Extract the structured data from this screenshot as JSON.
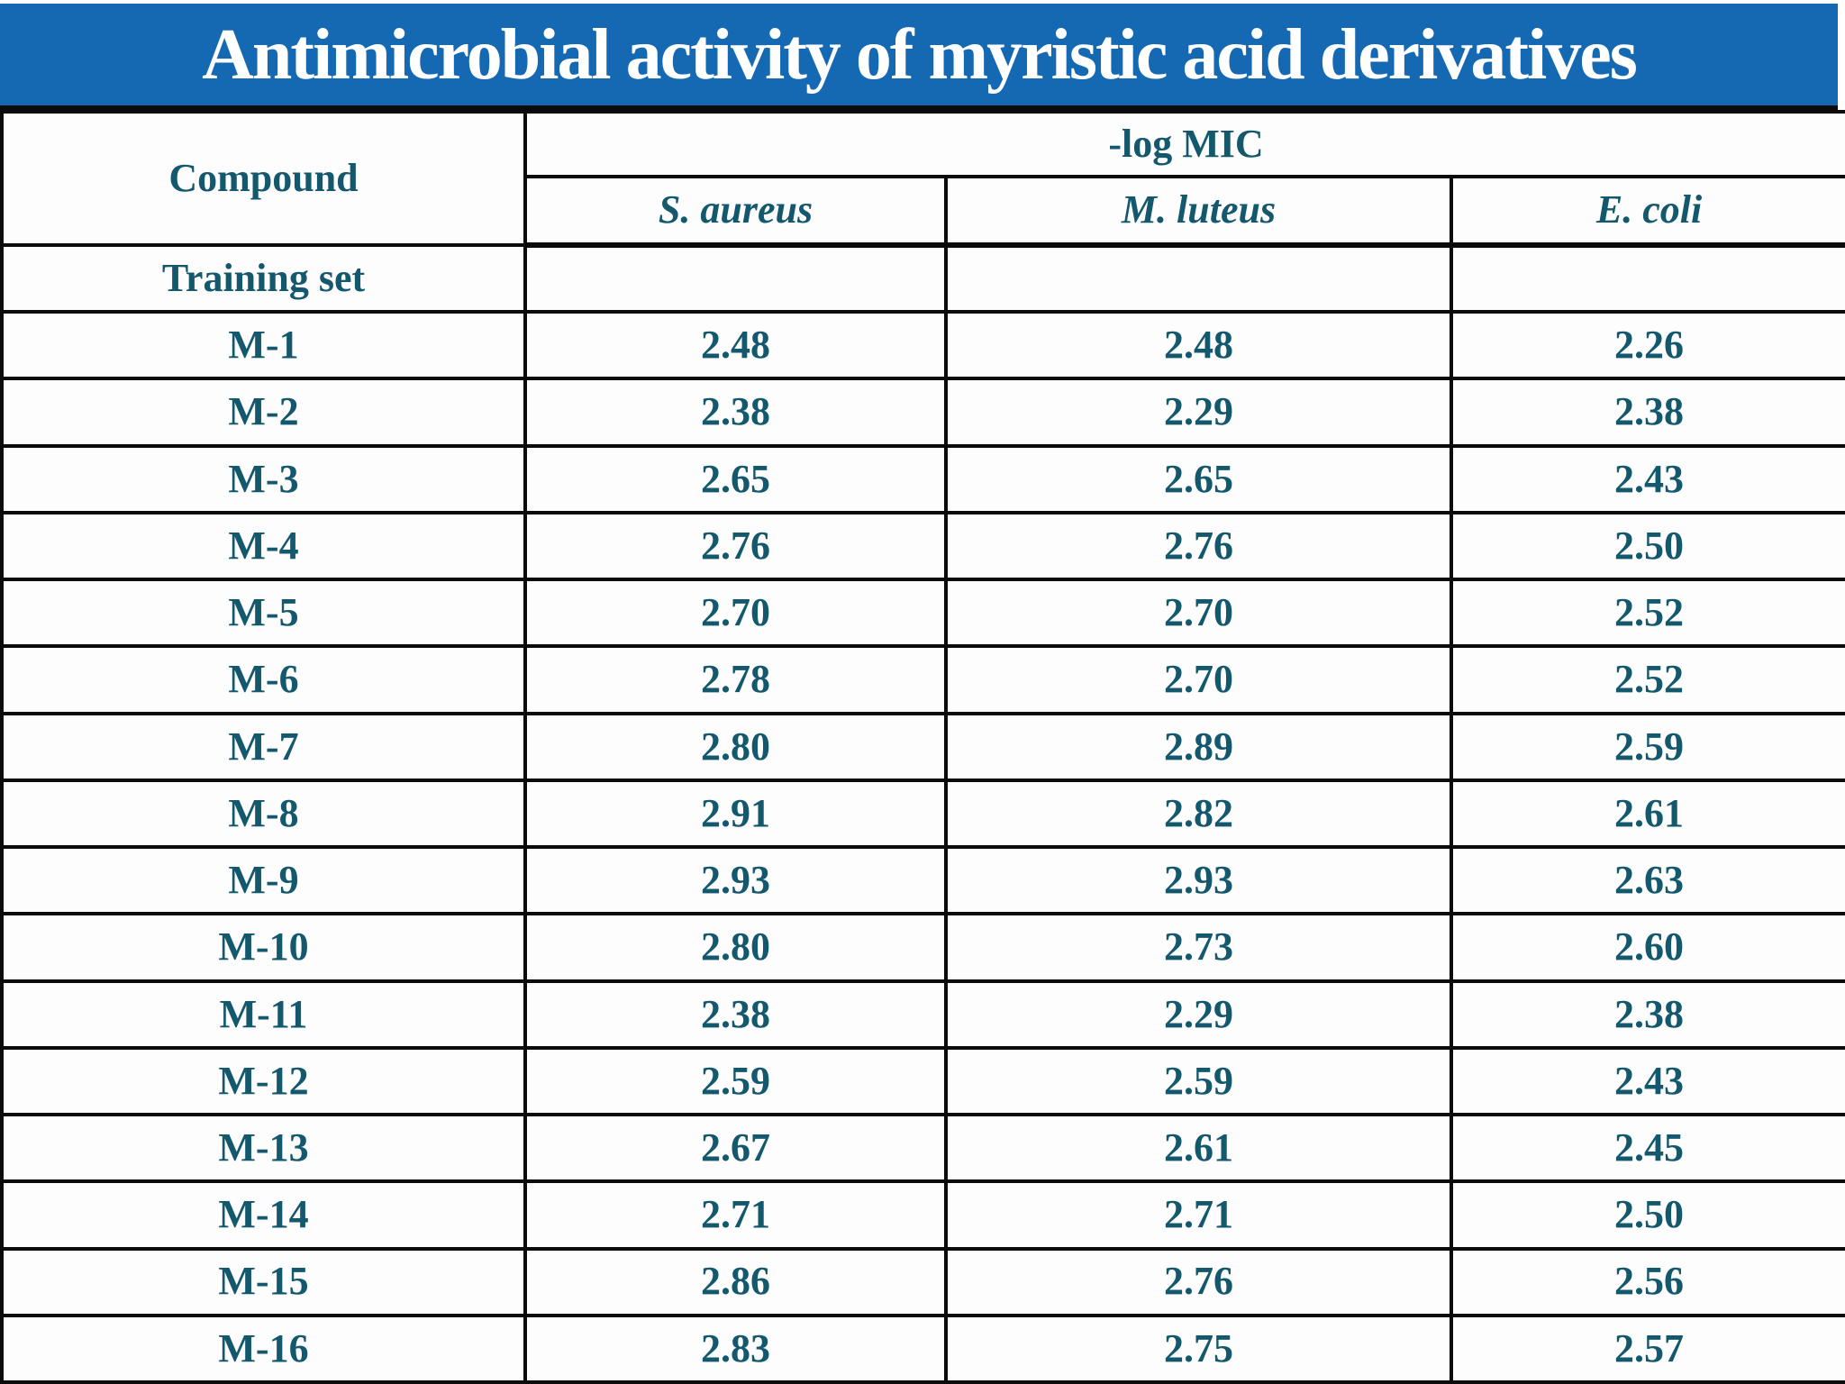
{
  "slide_title": "Antimicrobial activity of myristic acid derivatives",
  "colors": {
    "banner_background": "#1569b3",
    "title_text": "#ffffff",
    "table_text": "#14586e",
    "border": "#0b0b0b",
    "cell_background": "#fdfdfd"
  },
  "chart_data": {
    "type": "table",
    "title": "Antimicrobial activity of myristic acid derivatives",
    "column_group_header": "-log MIC",
    "columns": [
      "Compound",
      "S. aureus",
      "M. luteus",
      "E. coli"
    ],
    "section_label": "Training set",
    "rows": [
      {
        "compound": "M-1",
        "values": [
          "2.48",
          "2.48",
          "2.26"
        ]
      },
      {
        "compound": "M-2",
        "values": [
          "2.38",
          "2.29",
          "2.38"
        ]
      },
      {
        "compound": "M-3",
        "values": [
          "2.65",
          "2.65",
          "2.43"
        ]
      },
      {
        "compound": "M-4",
        "values": [
          "2.76",
          "2.76",
          "2.50"
        ]
      },
      {
        "compound": "M-5",
        "values": [
          "2.70",
          "2.70",
          "2.52"
        ]
      },
      {
        "compound": "M-6",
        "values": [
          "2.78",
          "2.70",
          "2.52"
        ]
      },
      {
        "compound": "M-7",
        "values": [
          "2.80",
          "2.89",
          "2.59"
        ]
      },
      {
        "compound": "M-8",
        "values": [
          "2.91",
          "2.82",
          "2.61"
        ]
      },
      {
        "compound": "M-9",
        "values": [
          "2.93",
          "2.93",
          "2.63"
        ]
      },
      {
        "compound": "M-10",
        "values": [
          "2.80",
          "2.73",
          "2.60"
        ]
      },
      {
        "compound": "M-11",
        "values": [
          "2.38",
          "2.29",
          "2.38"
        ]
      },
      {
        "compound": "M-12",
        "values": [
          "2.59",
          "2.59",
          "2.43"
        ]
      },
      {
        "compound": "M-13",
        "values": [
          "2.67",
          "2.61",
          "2.45"
        ]
      },
      {
        "compound": "M-14",
        "values": [
          "2.71",
          "2.71",
          "2.50"
        ]
      },
      {
        "compound": "M-15",
        "values": [
          "2.86",
          "2.76",
          "2.56"
        ]
      },
      {
        "compound": "M-16",
        "values": [
          "2.83",
          "2.75",
          "2.57"
        ]
      }
    ]
  }
}
